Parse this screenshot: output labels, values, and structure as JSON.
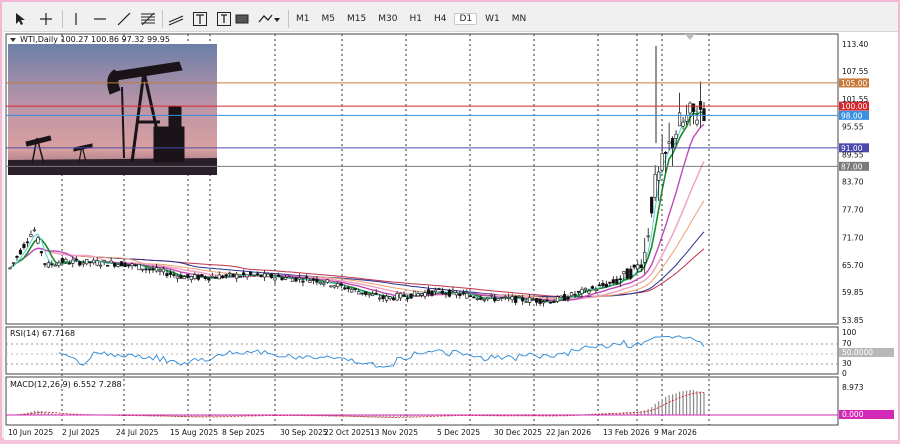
{
  "toolbar": {
    "timeframes": [
      "M1",
      "M5",
      "M15",
      "M30",
      "H1",
      "H4",
      "D1",
      "W1",
      "MN"
    ],
    "active_timeframe": "D1"
  },
  "main_chart": {
    "header": "WTI,Daily 100.27 100.86 97.32 99.95",
    "price_labels": [
      "113.40",
      "107.55",
      "101.55",
      "95.55",
      "89.55",
      "83.70",
      "77.70",
      "71.70",
      "65.70",
      "59.85",
      "53.85"
    ],
    "levels": [
      {
        "value": 105.0,
        "label": "105.00",
        "color": "#c87a3a"
      },
      {
        "value": 100.0,
        "label": "100.00",
        "color": "#d8262e"
      },
      {
        "value": 98.0,
        "label": "98.00",
        "color": "#3a90e0"
      },
      {
        "value": 91.0,
        "label": "91.00",
        "color": "#4a4ab0"
      },
      {
        "value": 87.0,
        "label": "87.00",
        "color": "#7a7a7a"
      }
    ]
  },
  "rsi": {
    "header": "RSI(14) 67.7168",
    "scale_labels": [
      "100",
      "70",
      "30",
      "0"
    ],
    "badge": "50.0000"
  },
  "macd": {
    "header": "MACD(12,26,9) 6.552 7.288",
    "scale_label": "8.973",
    "badge": "0.000"
  },
  "time_labels": [
    "10 Jun 2025",
    "2 Jul 2025",
    "24 Jul 2025",
    "15 Aug 2025",
    "8 Sep 2025",
    "30 Sep 2025",
    "22 Oct 2025",
    "13 Nov 2025",
    "5 Dec 2025",
    "30 Dec 2025",
    "22 Jan 2026",
    "13 Feb 2026",
    "9 Mar 2026"
  ],
  "chart_data": {
    "type": "candlestick",
    "title": "WTI,Daily",
    "ohlc_last": {
      "open": 100.27,
      "high": 100.86,
      "low": 97.32,
      "close": 99.95
    },
    "ylim": [
      53.85,
      115
    ],
    "x_dates": [
      "10 Jun 2025",
      "2 Jul 2025",
      "24 Jul 2025",
      "15 Aug 2025",
      "8 Sep 2025",
      "30 Sep 2025",
      "22 Oct 2025",
      "13 Nov 2025",
      "5 Dec 2025",
      "30 Dec 2025",
      "22 Jan 2026",
      "13 Feb 2026",
      "9 Mar 2026"
    ],
    "approx_close_series": [
      {
        "date": "10 Jun 2025",
        "close": 65.0
      },
      {
        "date": "17 Jun 2025",
        "close": 73.5
      },
      {
        "date": "24 Jun 2025",
        "close": 65.5
      },
      {
        "date": "2 Jul 2025",
        "close": 66.5
      },
      {
        "date": "24 Jul 2025",
        "close": 66.0
      },
      {
        "date": "15 Aug 2025",
        "close": 63.0
      },
      {
        "date": "8 Sep 2025",
        "close": 63.5
      },
      {
        "date": "30 Sep 2025",
        "close": 62.5
      },
      {
        "date": "22 Oct 2025",
        "close": 58.5
      },
      {
        "date": "13 Nov 2025",
        "close": 60.0
      },
      {
        "date": "5 Dec 2025",
        "close": 58.5
      },
      {
        "date": "30 Dec 2025",
        "close": 58.0
      },
      {
        "date": "22 Jan 2026",
        "close": 62.0
      },
      {
        "date": "13 Feb 2026",
        "close": 64.5
      },
      {
        "date": "24 Feb 2026",
        "close": 67.0
      },
      {
        "date": "2 Mar 2026",
        "close": 80.0
      },
      {
        "date": "9 Mar 2026",
        "close": 95.0
      },
      {
        "date": "16 Mar 2026",
        "close": 99.95
      }
    ],
    "rsi_last": 67.7168,
    "macd_last": {
      "main": 6.552,
      "signal": 7.288
    }
  }
}
